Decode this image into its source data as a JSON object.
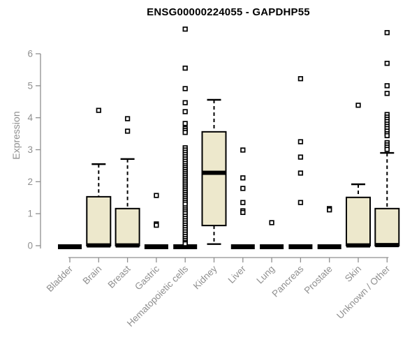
{
  "window": {
    "title": "ENSG00000224055 - GAPDHP55"
  },
  "chart_data": {
    "type": "box",
    "title": "ENSG00000224055 - GAPDHP55",
    "ylabel": "Expression",
    "xlabel": "",
    "ylim": [
      0,
      6.9
    ],
    "yticks": [
      0,
      1,
      2,
      3,
      4,
      5,
      6
    ],
    "grid": false,
    "legend": null,
    "colors": {
      "box_fill": "#EDE8CC",
      "box_line": "#000000",
      "axis": "#8f8f8f",
      "title": "#000000"
    },
    "categories": [
      "Bladder",
      "Brain",
      "Breast",
      "Gastric",
      "Hematopoietic cells",
      "Kidney",
      "Liver",
      "Lung",
      "Pancreas",
      "Prostate",
      "Skin",
      "Unknown / Other"
    ],
    "series": [
      {
        "category": "Bladder",
        "q1": 0,
        "median": 0,
        "q3": 0,
        "whisker_low": 0,
        "whisker_high": 0,
        "outliers": []
      },
      {
        "category": "Brain",
        "q1": 0,
        "median": 0.02,
        "q3": 1.53,
        "whisker_low": 0,
        "whisker_high": 2.55,
        "outliers": [
          4.23
        ]
      },
      {
        "category": "Breast",
        "q1": 0,
        "median": 0.02,
        "q3": 1.16,
        "whisker_low": 0,
        "whisker_high": 2.71,
        "outliers": [
          3.97,
          3.58
        ]
      },
      {
        "category": "Gastric",
        "q1": 0,
        "median": 0,
        "q3": 0,
        "whisker_low": 0,
        "whisker_high": 0,
        "outliers": [
          1.57,
          0.68,
          0.64
        ]
      },
      {
        "category": "Hematopoietic cells",
        "q1": 0,
        "median": 0,
        "q3": 0,
        "whisker_low": 0,
        "whisker_high": 0,
        "outliers": [
          6.77,
          5.55,
          4.91,
          4.47,
          4.19,
          3.82,
          3.66,
          3.6,
          3.54,
          3.06,
          2.99,
          2.92,
          2.85,
          2.78,
          2.71,
          2.64,
          2.57,
          2.5,
          2.44,
          2.38,
          2.32,
          2.26,
          2.2,
          2.14,
          2.08,
          2.02,
          1.96,
          1.9,
          1.84,
          1.78,
          1.72,
          1.66,
          1.6,
          1.54,
          1.48,
          1.42,
          1.36,
          1.3,
          1.18,
          1.12,
          1.06,
          1.0,
          0.92,
          0.85,
          0.78,
          0.71,
          0.64,
          0.57,
          0.5,
          0.43,
          0.36,
          0.29,
          0.22,
          0.16,
          0.1,
          0.06
        ]
      },
      {
        "category": "Kidney",
        "q1": 0.63,
        "median": 2.29,
        "q3": 3.56,
        "whisker_low": 0.05,
        "whisker_high": 4.56,
        "outliers": []
      },
      {
        "category": "Liver",
        "q1": 0,
        "median": 0,
        "q3": 0,
        "whisker_low": 0,
        "whisker_high": 0,
        "outliers": [
          2.99,
          2.12,
          1.79,
          1.35,
          1.09,
          1.04
        ]
      },
      {
        "category": "Lung",
        "q1": 0,
        "median": 0,
        "q3": 0,
        "whisker_low": 0,
        "whisker_high": 0,
        "outliers": [
          0.72
        ]
      },
      {
        "category": "Pancreas",
        "q1": 0,
        "median": 0,
        "q3": 0,
        "whisker_low": 0,
        "whisker_high": 0,
        "outliers": [
          5.22,
          3.25,
          2.77,
          2.27,
          1.35
        ]
      },
      {
        "category": "Prostate",
        "q1": 0,
        "median": 0,
        "q3": 0,
        "whisker_low": 0,
        "whisker_high": 0,
        "outliers": [
          1.16,
          1.12
        ]
      },
      {
        "category": "Skin",
        "q1": 0,
        "median": 0.02,
        "q3": 1.51,
        "whisker_low": 0,
        "whisker_high": 1.92,
        "outliers": [
          4.39
        ]
      },
      {
        "category": "Unknown / Other",
        "q1": 0,
        "median": 0.03,
        "q3": 1.16,
        "whisker_low": 0,
        "whisker_high": 2.9,
        "outliers": [
          6.66,
          5.7,
          5.0,
          4.76,
          4.1,
          4.02,
          3.95,
          3.88,
          3.8,
          3.73,
          3.66,
          3.58,
          3.5,
          3.44,
          3.22,
          3.15,
          3.08,
          3.01
        ]
      }
    ]
  }
}
